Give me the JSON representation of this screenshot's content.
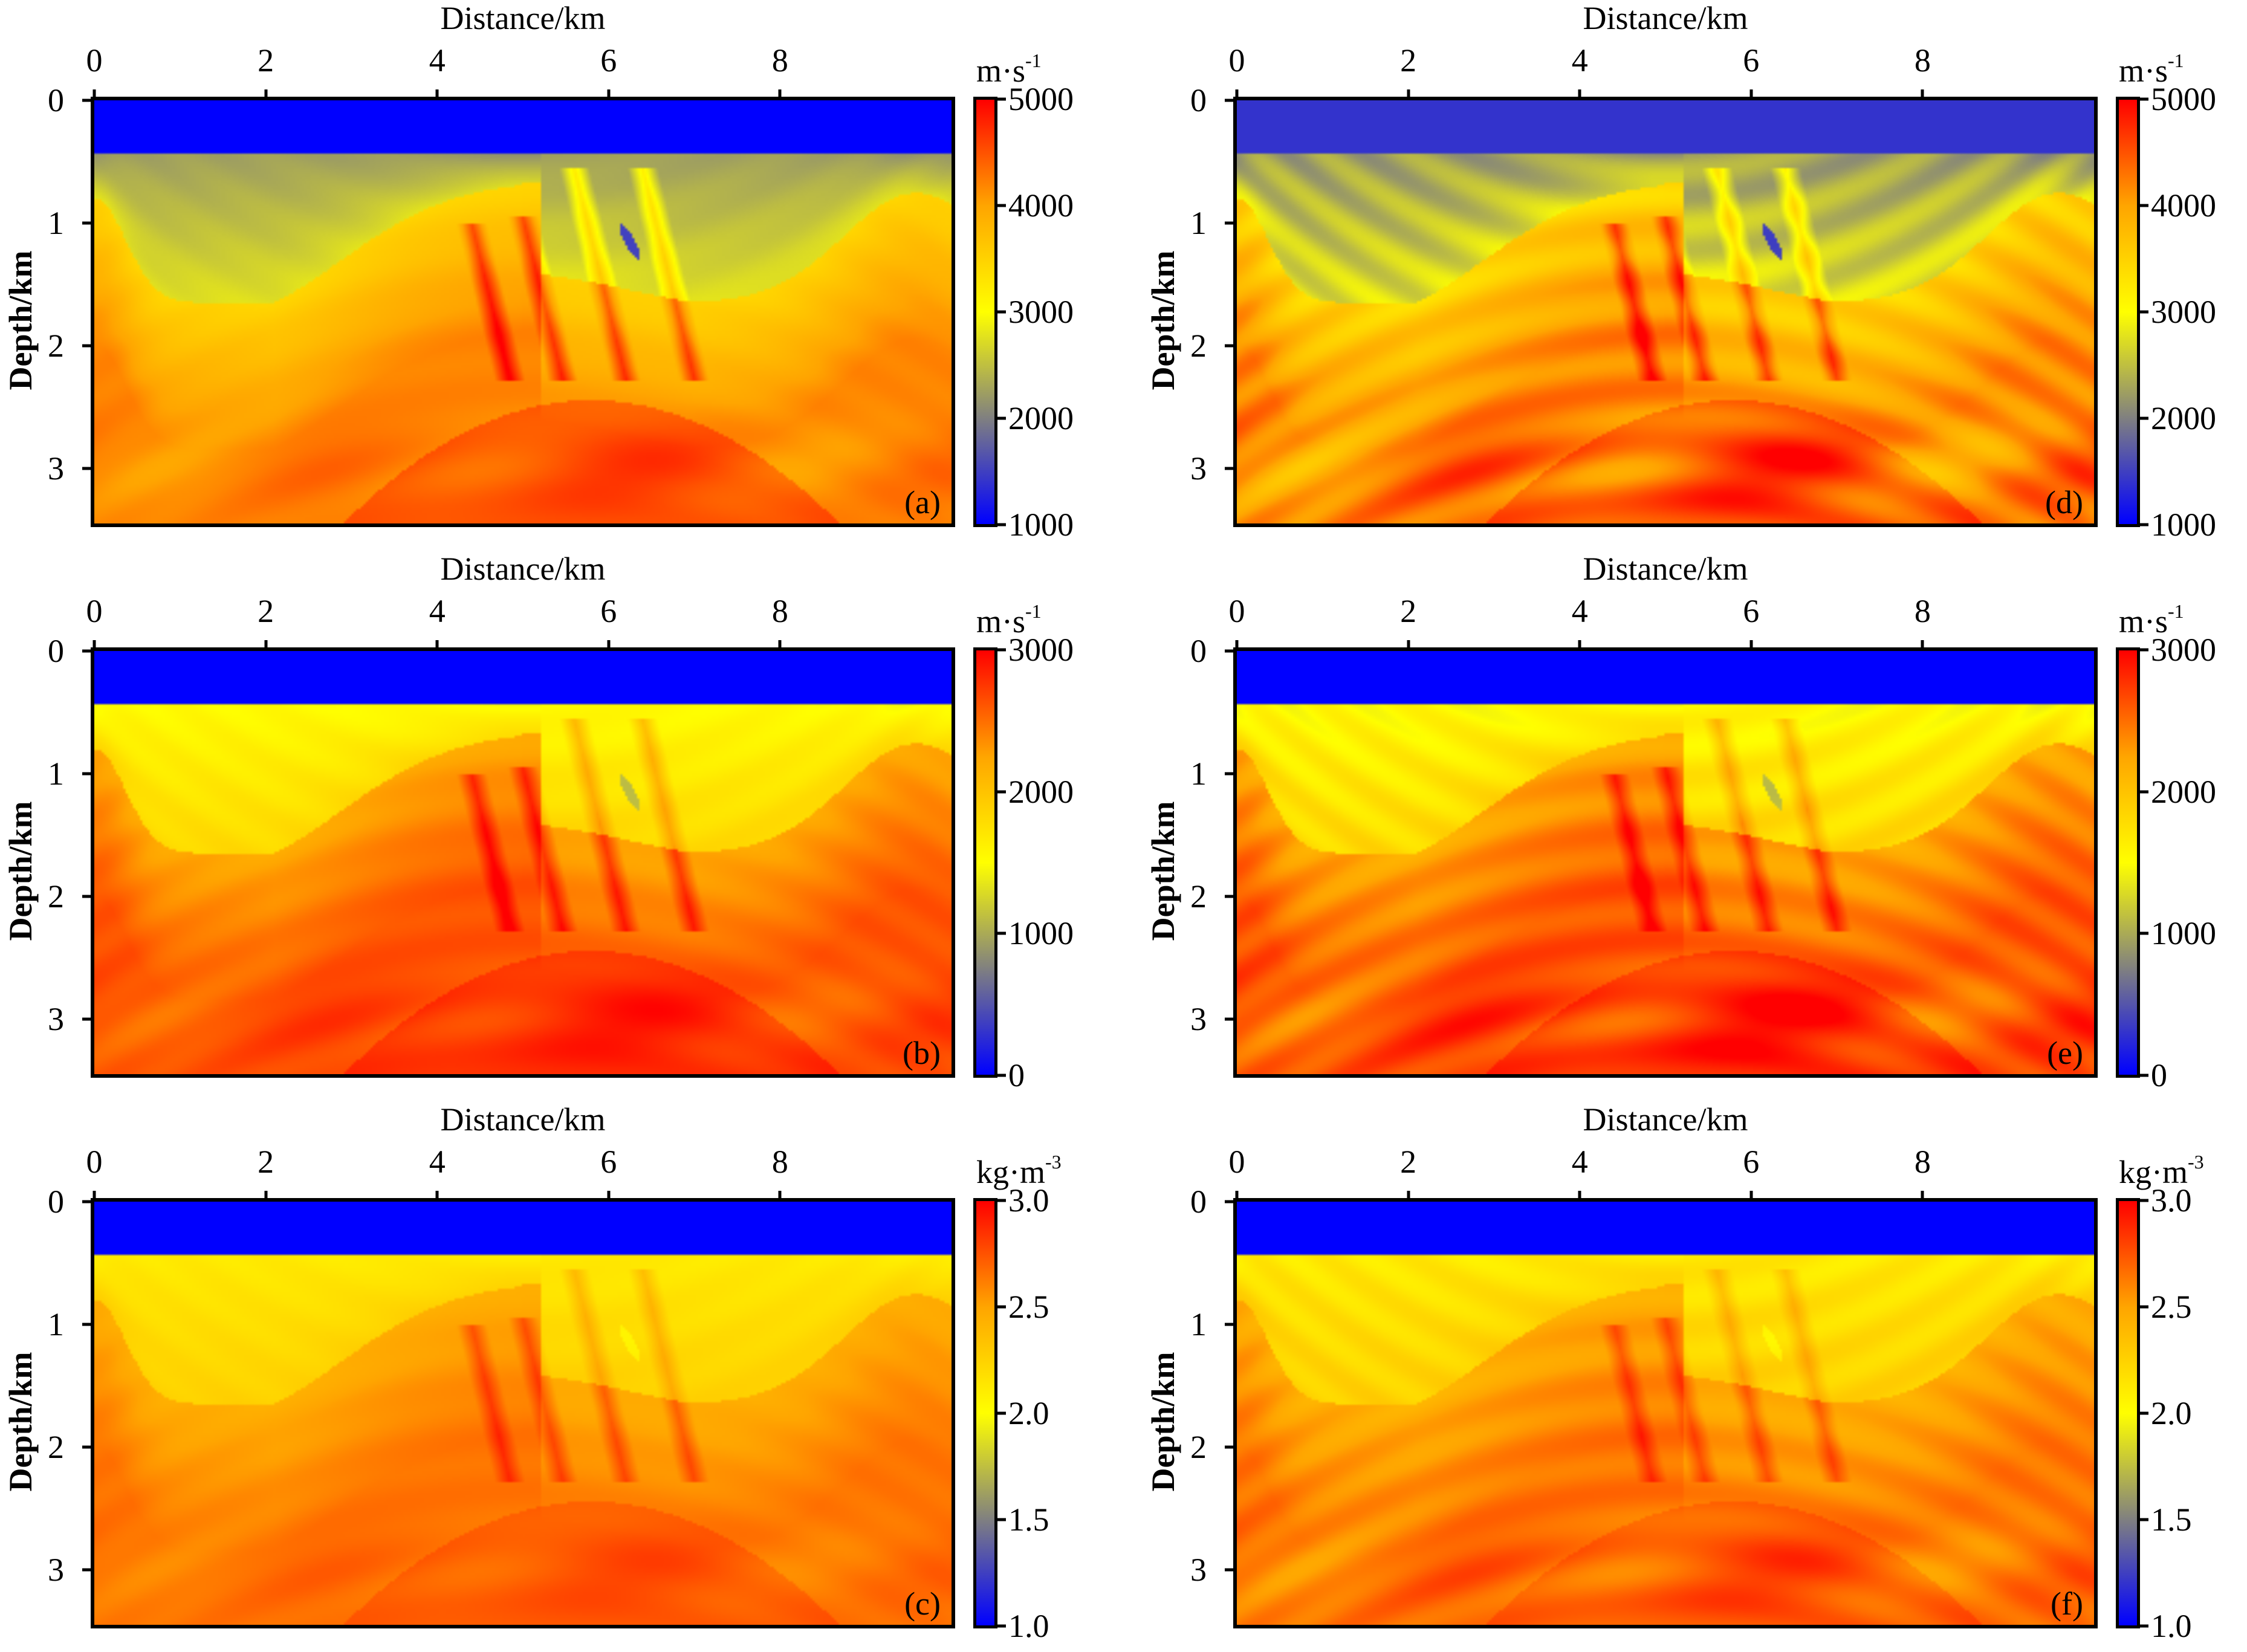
{
  "figure": {
    "colormap": [
      "#0000ff",
      "#808080",
      "#ffff00",
      "#ffa500",
      "#ff0000"
    ],
    "water_color": "#0000ff",
    "water_color_muted": "#3333cc"
  },
  "chart_data": [
    {
      "id": "a",
      "tag": "(a)",
      "type": "heatmap",
      "title": "",
      "xlabel": "Distance/km",
      "ylabel": "Depth/km",
      "xlim": [
        0,
        10
      ],
      "ylim": [
        3.45,
        0
      ],
      "xticks": [
        "0",
        "2",
        "4",
        "6",
        "8"
      ],
      "yticks": [
        "0",
        "1",
        "2",
        "3"
      ],
      "colorbar": {
        "unit": "m·s",
        "unit_exp": "-1",
        "range": [
          1000,
          5000
        ],
        "ticks": [
          "5000",
          "4000",
          "3000",
          "2000",
          "1000"
        ]
      },
      "water_depth_km": 0.42,
      "water_value": 1000,
      "sharpness": 0.15,
      "muted_water": false
    },
    {
      "id": "b",
      "tag": "(b)",
      "type": "heatmap",
      "title": "",
      "xlabel": "Distance/km",
      "ylabel": "Depth/km",
      "xlim": [
        0,
        10
      ],
      "ylim": [
        3.45,
        0
      ],
      "xticks": [
        "0",
        "2",
        "4",
        "6",
        "8"
      ],
      "yticks": [
        "0",
        "1",
        "2",
        "3"
      ],
      "colorbar": {
        "unit": "m·s",
        "unit_exp": "-1",
        "range": [
          0,
          3000
        ],
        "ticks": [
          "3000",
          "2000",
          "1000",
          "0"
        ]
      },
      "water_depth_km": 0.42,
      "water_value": 0,
      "sharpness": 0.35,
      "muted_water": false
    },
    {
      "id": "c",
      "tag": "(c)",
      "type": "heatmap",
      "title": "",
      "xlabel": "Distance/km",
      "ylabel": "Depth/km",
      "xlim": [
        0,
        10
      ],
      "ylim": [
        3.45,
        0
      ],
      "xticks": [
        "0",
        "2",
        "4",
        "6",
        "8"
      ],
      "yticks": [
        "0",
        "1",
        "2",
        "3"
      ],
      "colorbar": {
        "unit": "kg·m",
        "unit_exp": "-3",
        "range": [
          1.0,
          3.0
        ],
        "ticks": [
          "3.0",
          "2.5",
          "2.0",
          "1.5",
          "1.0"
        ]
      },
      "water_depth_km": 0.42,
      "water_value": 1.0,
      "sharpness": 0.3,
      "muted_water": false
    },
    {
      "id": "d",
      "tag": "(d)",
      "type": "heatmap",
      "title": "",
      "xlabel": "Distance/km",
      "ylabel": "Depth/km",
      "xlim": [
        0,
        10
      ],
      "ylim": [
        3.45,
        0
      ],
      "xticks": [
        "0",
        "2",
        "4",
        "6",
        "8"
      ],
      "yticks": [
        "0",
        "1",
        "2",
        "3"
      ],
      "colorbar": {
        "unit": "m·s",
        "unit_exp": "-1",
        "range": [
          1000,
          5000
        ],
        "ticks": [
          "5000",
          "4000",
          "3000",
          "2000",
          "1000"
        ]
      },
      "water_depth_km": 0.42,
      "water_value": 1500,
      "sharpness": 0.9,
      "muted_water": true
    },
    {
      "id": "e",
      "tag": "(e)",
      "type": "heatmap",
      "title": "",
      "xlabel": "Distance/km",
      "ylabel": "Depth/km",
      "xlim": [
        0,
        10
      ],
      "ylim": [
        3.45,
        0
      ],
      "xticks": [
        "0",
        "2",
        "4",
        "6",
        "8"
      ],
      "yticks": [
        "0",
        "1",
        "2",
        "3"
      ],
      "colorbar": {
        "unit": "m·s",
        "unit_exp": "-1",
        "range": [
          0,
          3000
        ],
        "ticks": [
          "3000",
          "2000",
          "1000",
          "0"
        ]
      },
      "water_depth_km": 0.42,
      "water_value": 0,
      "sharpness": 0.9,
      "muted_water": false
    },
    {
      "id": "f",
      "tag": "(f)",
      "type": "heatmap",
      "title": "",
      "xlabel": "Distance/km",
      "ylabel": "Depth/km",
      "xlim": [
        0,
        10
      ],
      "ylim": [
        3.45,
        0
      ],
      "xticks": [
        "0",
        "2",
        "4",
        "6",
        "8"
      ],
      "yticks": [
        "0",
        "1",
        "2",
        "3"
      ],
      "colorbar": {
        "unit": "kg·m",
        "unit_exp": "-3",
        "range": [
          1.0,
          3.0
        ],
        "ticks": [
          "3.0",
          "2.5",
          "2.0",
          "1.5",
          "1.0"
        ]
      },
      "water_depth_km": 0.42,
      "water_value": 1.0,
      "sharpness": 0.9,
      "muted_water": false
    }
  ]
}
